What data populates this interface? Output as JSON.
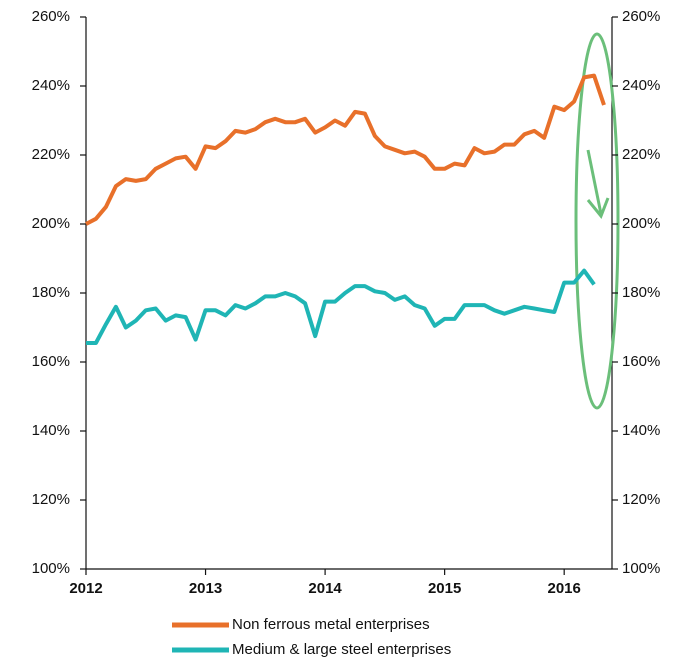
{
  "chart_data": {
    "type": "line",
    "x": [
      2012,
      2012.083,
      2012.167,
      2012.25,
      2012.333,
      2012.417,
      2012.5,
      2012.583,
      2012.667,
      2012.75,
      2012.833,
      2012.917,
      2013,
      2013.083,
      2013.167,
      2013.25,
      2013.333,
      2013.417,
      2013.5,
      2013.583,
      2013.667,
      2013.75,
      2013.833,
      2013.917,
      2014,
      2014.083,
      2014.167,
      2014.25,
      2014.333,
      2014.417,
      2014.5,
      2014.583,
      2014.667,
      2014.75,
      2014.833,
      2014.917,
      2015,
      2015.083,
      2015.167,
      2015.25,
      2015.333,
      2015.417,
      2015.5,
      2015.583,
      2015.667,
      2015.75,
      2015.833,
      2015.917,
      2016,
      2016.083,
      2016.167,
      2016.25,
      2016.333
    ],
    "series": [
      {
        "name": "Non ferrous metal enterprises",
        "color": "#e8702a",
        "values": [
          200,
          201.5,
          205,
          211,
          213,
          212.5,
          213,
          216,
          217.5,
          219,
          219.5,
          216,
          222.5,
          222,
          224,
          227,
          226.5,
          227.5,
          229.5,
          230.5,
          229.5,
          229.5,
          230.5,
          226.5,
          228,
          230,
          228.5,
          232.5,
          232,
          225.5,
          222.5,
          221.5,
          220.5,
          221,
          219.5,
          216,
          216,
          217.5,
          217,
          222,
          220.5,
          221,
          223,
          223,
          226,
          227,
          225,
          234,
          233,
          235.5,
          242.5,
          243,
          234.5
        ]
      },
      {
        "name": "Medium & large steel enterprises",
        "color": "#1fb5b5",
        "values": [
          165.5,
          165.5,
          171,
          176,
          170,
          172,
          175,
          175.5,
          172,
          173.5,
          173,
          166.5,
          175,
          175,
          173.5,
          176.5,
          175.5,
          177,
          179,
          179,
          180,
          179,
          177,
          167.5,
          177.5,
          177.5,
          180,
          182,
          182,
          180.5,
          180,
          178,
          179,
          176.5,
          175.5,
          170.5,
          172.5,
          172.5,
          176.5,
          176.5,
          176.5,
          175,
          174,
          175,
          176,
          175.5,
          175,
          174.5,
          183,
          183,
          186.5,
          182.5,
          null
        ]
      }
    ],
    "xlim": [
      2012,
      2016.4
    ],
    "xticks": [
      2012,
      2013,
      2014,
      2015,
      2016
    ],
    "ylim": [
      100,
      260
    ],
    "yticks": [
      {
        "value": 100,
        "label": "100%"
      },
      {
        "value": 120,
        "label": "120%"
      },
      {
        "value": 140,
        "label": "140%"
      },
      {
        "value": 160,
        "label": "160%"
      },
      {
        "value": 180,
        "label": "180%"
      },
      {
        "value": 200,
        "label": "200%"
      },
      {
        "value": 220,
        "label": "220%"
      },
      {
        "value": 240,
        "label": "240%"
      },
      {
        "value": 260,
        "label": "260%"
      }
    ],
    "y2lim": [
      100,
      260
    ],
    "y2ticks": [
      {
        "value": 100,
        "label": "100%"
      },
      {
        "value": 120,
        "label": "120%"
      },
      {
        "value": 140,
        "label": "140%"
      },
      {
        "value": 160,
        "label": "160%"
      },
      {
        "value": 180,
        "label": "180%"
      },
      {
        "value": 200,
        "label": "200%"
      },
      {
        "value": 220,
        "label": "220%"
      },
      {
        "value": 240,
        "label": "240%"
      },
      {
        "value": 260,
        "label": "260%"
      }
    ],
    "grid": false
  }
}
